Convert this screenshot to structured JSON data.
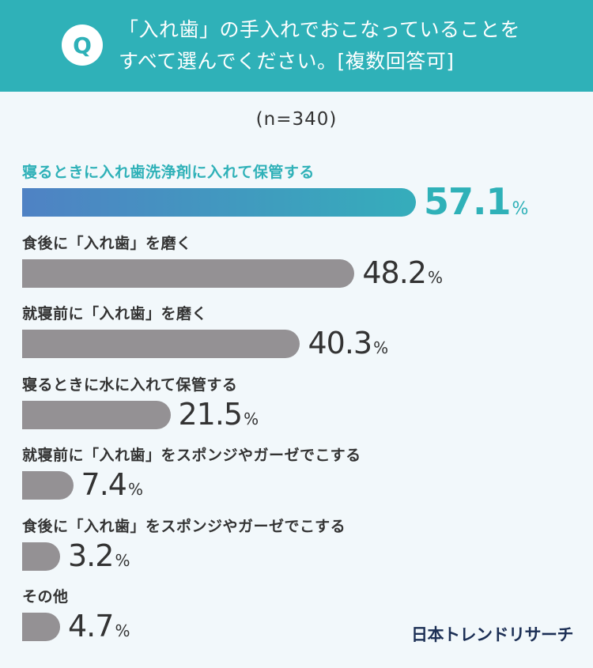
{
  "header": {
    "badge": "Q",
    "question_line1": "「入れ歯」の手入れでおこなっていることを",
    "question_line2": "すべて選んでください。[複数回答可]"
  },
  "sample_size": "(n=340)",
  "brand": "日本トレンドリサーチ",
  "colors": {
    "header": "#2fb1b8",
    "highlight": "#2fb1b8",
    "bar_gradient_start": "#4f82c4",
    "bar_gradient_end": "#35adbb",
    "bar_default": "#949194",
    "text": "#333333",
    "brand": "#1c2f55"
  },
  "chart_data": {
    "type": "bar",
    "orientation": "horizontal",
    "unit": "%",
    "xlim": [
      0,
      100
    ],
    "grid": false,
    "categories": [
      "寝るときに入れ歯洗浄剤に入れて保管する",
      "食後に「入れ歯」を磨く",
      "就寝前に「入れ歯」を磨く",
      "寝るときに水に入れて保管する",
      "就寝前に「入れ歯」をスポンジやガーゼでこする",
      "食後に「入れ歯」をスポンジやガーゼでこする",
      "その他"
    ],
    "values": [
      57.1,
      48.2,
      40.3,
      21.5,
      7.4,
      3.2,
      4.7
    ],
    "value_labels": [
      "57.1",
      "48.2",
      "40.3",
      "21.5",
      "7.4",
      "3.2",
      "4.7"
    ],
    "highlight_index": 0
  }
}
